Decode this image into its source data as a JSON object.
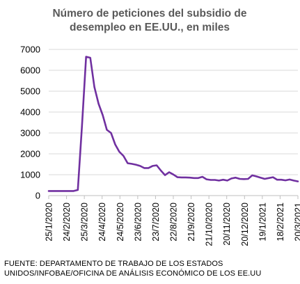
{
  "chart_data": {
    "type": "line",
    "title_lines": [
      "Número de peticiones del subsidio de",
      "desempleo en EE.UU., en miles"
    ],
    "x_tick_labels": [
      "25/1/2020",
      "24/2/2020",
      "25/3/2020",
      "24/4/2020",
      "24/5/2020",
      "23/6/2020",
      "23/7/2020",
      "22/8/2020",
      "21/9/2020",
      "21/10/2020",
      "20/11/2020",
      "20/12/2020",
      "19/1/2021",
      "18/2/2021",
      "20/3/2021"
    ],
    "y_ticks": [
      0,
      1000,
      2000,
      3000,
      4000,
      5000,
      6000,
      7000
    ],
    "ylim": [
      0,
      7000
    ],
    "x_range": [
      "2020-01-25",
      "2021-03-20"
    ],
    "line_color": "#7030a0",
    "series": [
      {
        "x": [
          "2020-01-25",
          "2020-02-01",
          "2020-02-08",
          "2020-02-15",
          "2020-02-22",
          "2020-02-29",
          "2020-03-07",
          "2020-03-14",
          "2020-03-21",
          "2020-03-28",
          "2020-04-04",
          "2020-04-11",
          "2020-04-18",
          "2020-04-25",
          "2020-05-02",
          "2020-05-09",
          "2020-05-16",
          "2020-05-23",
          "2020-05-30",
          "2020-06-06",
          "2020-06-13",
          "2020-06-20",
          "2020-06-27",
          "2020-07-04",
          "2020-07-11",
          "2020-07-18",
          "2020-07-25",
          "2020-08-01",
          "2020-08-08",
          "2020-08-15",
          "2020-08-22",
          "2020-08-29",
          "2020-09-05",
          "2020-09-12",
          "2020-09-19",
          "2020-09-26",
          "2020-10-03",
          "2020-10-10",
          "2020-10-17",
          "2020-10-24",
          "2020-10-31",
          "2020-11-07",
          "2020-11-14",
          "2020-11-21",
          "2020-11-28",
          "2020-12-05",
          "2020-12-12",
          "2020-12-19",
          "2020-12-26",
          "2021-01-02",
          "2021-01-09",
          "2021-01-16",
          "2021-01-23",
          "2021-01-30",
          "2021-02-06",
          "2021-02-13",
          "2021-02-20",
          "2021-02-27",
          "2021-03-06",
          "2021-03-13",
          "2021-03-20"
        ],
        "y": [
          220,
          220,
          220,
          220,
          220,
          220,
          220,
          270,
          3300,
          6650,
          6600,
          5200,
          4400,
          3850,
          3150,
          3000,
          2450,
          2100,
          1900,
          1550,
          1520,
          1480,
          1420,
          1320,
          1320,
          1420,
          1450,
          1200,
          980,
          1120,
          1010,
          880,
          870,
          870,
          860,
          840,
          840,
          900,
          780,
          750,
          750,
          720,
          760,
          720,
          820,
          860,
          800,
          790,
          800,
          970,
          920,
          860,
          800,
          840,
          880,
          760,
          760,
          730,
          770,
          720,
          680
        ]
      }
    ]
  },
  "source_lines": [
    "FUENTE: DEPARTAMENTO DE TRABAJO DE LOS ESTADOS",
    "UNIDOS/INFOBAE/OFICINA DE ANÁLISIS ECONÓMICO DE LOS EE.UU"
  ]
}
